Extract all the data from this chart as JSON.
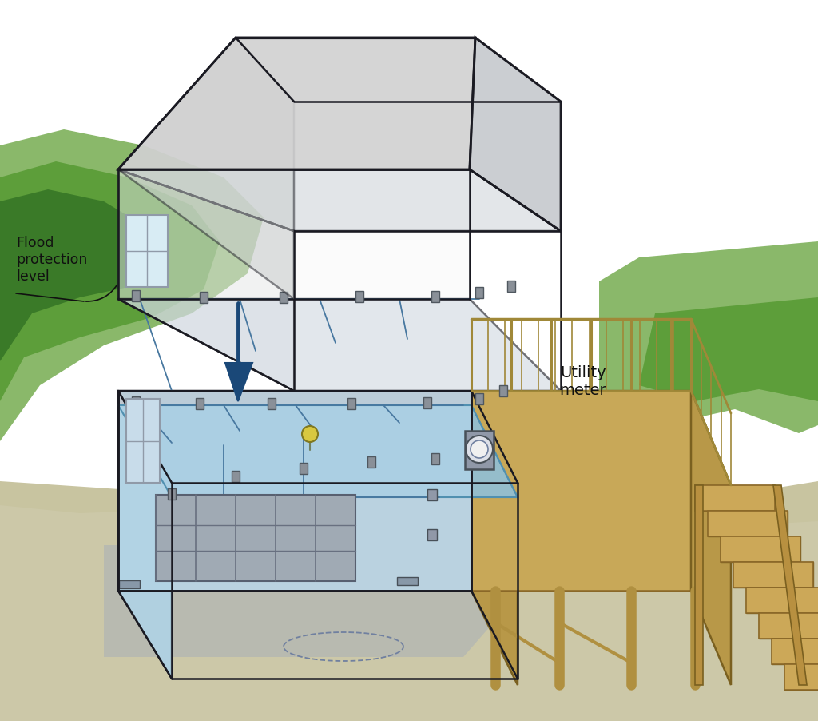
{
  "bg_color": "#ffffff",
  "figure_width": 10.24,
  "figure_height": 9.03,
  "flood_label": "Flood\nprotection\nlevel",
  "utility_label": "Utility\nmeter",
  "colors": {
    "green_light": "#8ab86a",
    "green_mid": "#5d9e3a",
    "green_dark": "#3a7a28",
    "green_right": "#7ab060",
    "ground_tan": "#c8c4a0",
    "ground_gray": "#b8b8a8",
    "concrete_gray": "#a8aaa0",
    "roof_gray": "#d0d0d0",
    "roof_back": "#c0c4c8",
    "wall_white": "#f2f2f0",
    "wall_left": "#d8dce0",
    "wall_front_lower": "#c0c8d0",
    "wall_gray": "#b0b8c0",
    "floor_2nd": "#d8dce0",
    "flood_blue": "#a0cce0",
    "flood_surface": "#90c0d8",
    "flood_wall": "#88b8d0",
    "flood_interior": "#b8d8ea",
    "deck_wood_top": "#d4b870",
    "deck_wood_front": "#c8a858",
    "deck_wood_side": "#b89848",
    "deck_post": "#b09040",
    "deck_railing": "#a08838",
    "stair_top": "#cca858",
    "stair_side": "#b89040",
    "stair_nosing": "#a07830",
    "outlet_gray": "#8a9098",
    "wire_blue": "#5878a0",
    "meter_gray": "#9098a8",
    "line_dark": "#1a1a22",
    "arrow_blue": "#1a4878",
    "label_line": "#222222"
  }
}
